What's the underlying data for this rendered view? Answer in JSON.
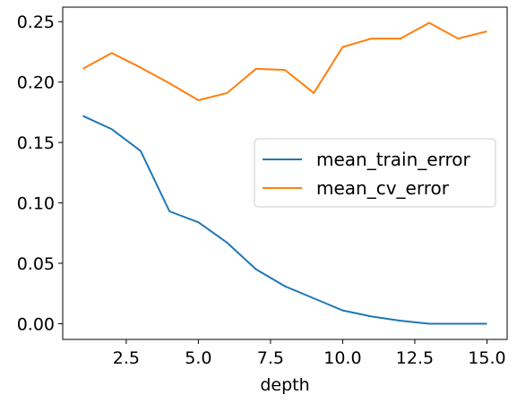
{
  "chart_data": {
    "type": "line",
    "xlabel": "depth",
    "ylabel": "",
    "xlim": [
      0.3,
      15.7
    ],
    "ylim": [
      -0.013,
      0.262
    ],
    "xticks": [
      2.5,
      5.0,
      7.5,
      10.0,
      12.5,
      15.0
    ],
    "xtick_labels": [
      "2.5",
      "5.0",
      "7.5",
      "10.0",
      "12.5",
      "15.0"
    ],
    "yticks": [
      0.0,
      0.05,
      0.1,
      0.15,
      0.2,
      0.25
    ],
    "ytick_labels": [
      "0.00",
      "0.05",
      "0.10",
      "0.15",
      "0.20",
      "0.25"
    ],
    "grid": false,
    "legend_position": "center-right",
    "x": [
      1,
      2,
      3,
      4,
      5,
      6,
      7,
      8,
      9,
      10,
      11,
      12,
      13,
      14,
      15
    ],
    "series": [
      {
        "name": "mean_train_error",
        "color": "#1f77b4",
        "values": [
          0.172,
          0.161,
          0.143,
          0.093,
          0.084,
          0.067,
          0.045,
          0.031,
          0.021,
          0.011,
          0.006,
          0.0025,
          0.0,
          0.0,
          0.0
        ]
      },
      {
        "name": "mean_cv_error",
        "color": "#ff7f0e",
        "values": [
          0.211,
          0.224,
          0.212,
          0.199,
          0.185,
          0.191,
          0.211,
          0.21,
          0.191,
          0.229,
          0.236,
          0.236,
          0.249,
          0.236,
          0.242
        ]
      }
    ]
  }
}
